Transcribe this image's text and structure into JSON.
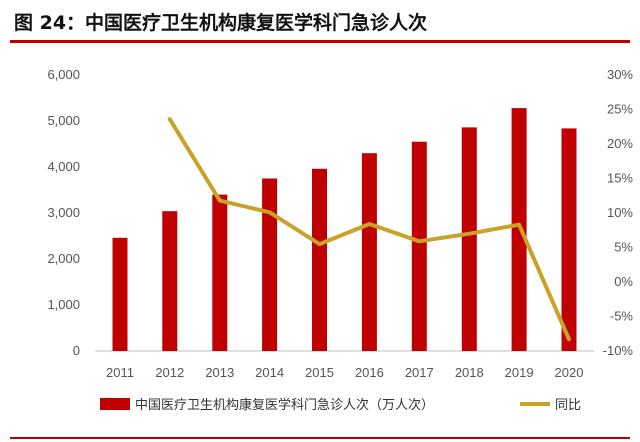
{
  "title": "图 24：中国医疗卫生机构康复医学科门急诊人次",
  "colors": {
    "accent": "#c00000",
    "bar": "#c00000",
    "line": "#c9a227",
    "axis": "#bfbfbf"
  },
  "chart_data": {
    "type": "bar",
    "title": "",
    "xlabel": "",
    "ylabel": "",
    "categories": [
      "2011",
      "2012",
      "2013",
      "2014",
      "2015",
      "2016",
      "2017",
      "2018",
      "2019",
      "2020"
    ],
    "y_ticks": [
      "6,000",
      "5,000",
      "4,000",
      "3,000",
      "2,000",
      "1,000",
      "0"
    ],
    "y2_ticks": [
      "30%",
      "25%",
      "20%",
      "15%",
      "10%",
      "5%",
      "0%",
      "-5%",
      "-10%"
    ],
    "ylim": [
      0,
      6000
    ],
    "y2lim": [
      -10,
      30
    ],
    "grid": false,
    "legend": "bottom",
    "series": [
      {
        "name": "中国医疗卫生机构康复医学科门急诊人次（万人次）",
        "type": "bar",
        "axis": "left",
        "values": [
          2460,
          3040,
          3400,
          3750,
          3960,
          4300,
          4550,
          4860,
          5280,
          4840
        ]
      },
      {
        "name": "同比",
        "type": "line",
        "axis": "right",
        "values": [
          null,
          23.6,
          11.8,
          10.1,
          5.5,
          8.4,
          5.9,
          7.0,
          8.3,
          -8.3
        ]
      }
    ]
  }
}
